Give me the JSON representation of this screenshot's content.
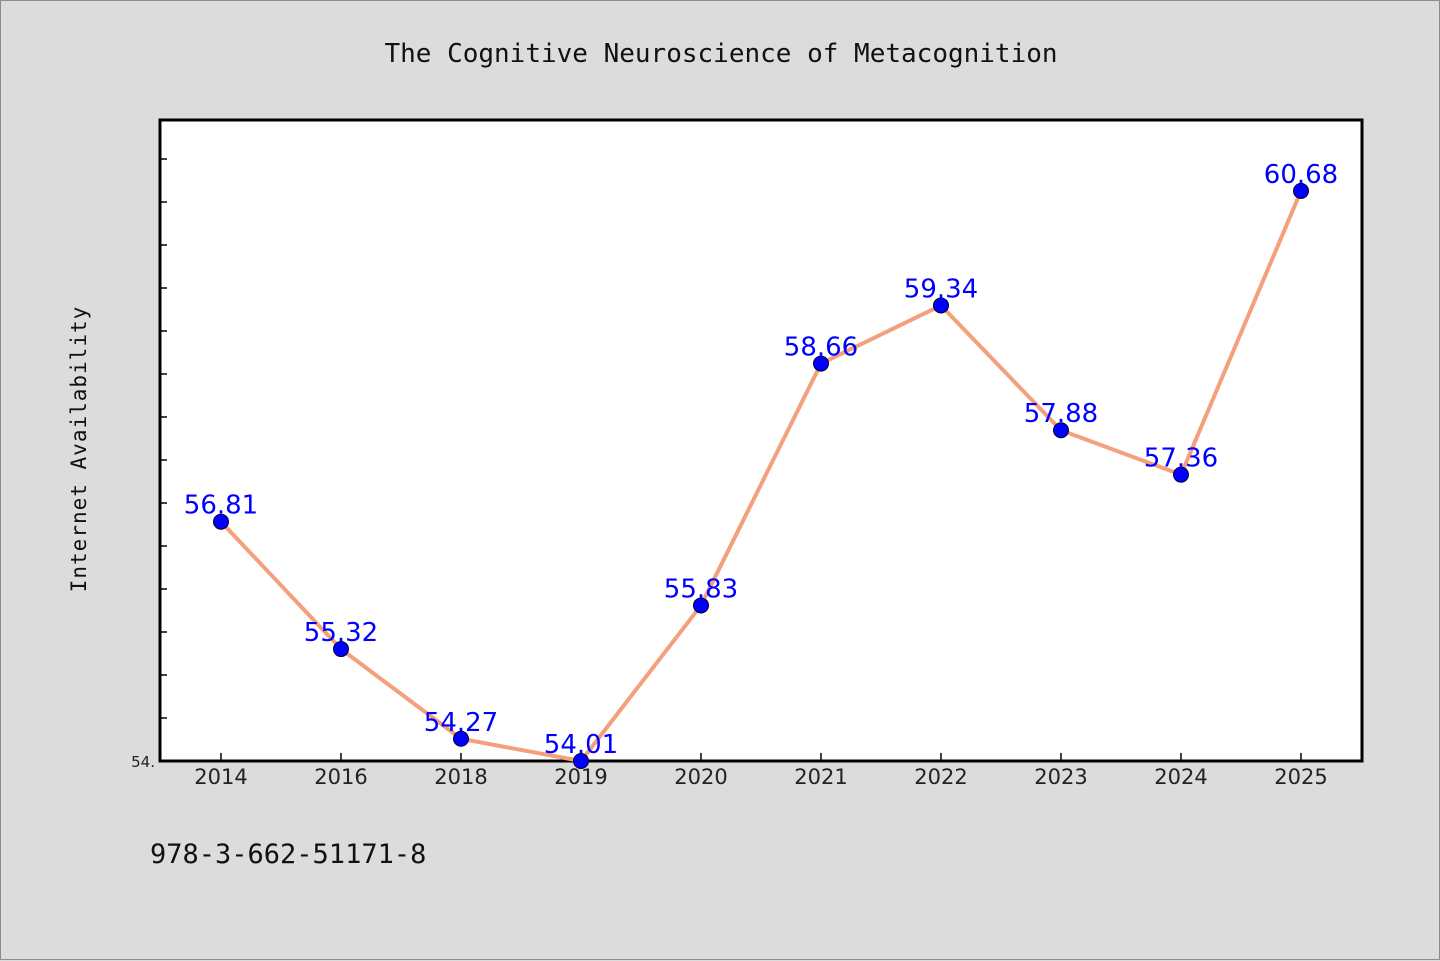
{
  "chart_data": {
    "type": "line",
    "title": "The Cognitive Neuroscience of Metacognition",
    "xlabel": "",
    "ylabel": "Internet Availability",
    "categories": [
      "2014",
      "2016",
      "2018",
      "2019",
      "2020",
      "2021",
      "2022",
      "2023",
      "2024",
      "2025"
    ],
    "values": [
      56.81,
      55.32,
      54.27,
      54.01,
      55.83,
      58.66,
      59.34,
      57.88,
      57.36,
      60.68
    ],
    "data_labels": [
      "56.81",
      "55.32",
      "54.27",
      "54.01",
      "55.83",
      "58.66",
      "59.34",
      "57.88",
      "57.36",
      "60.68"
    ],
    "y_tick_labels": [
      "54."
    ],
    "ylim": [
      54.01,
      61.51
    ],
    "grid": false,
    "line_color": "#f4a07c",
    "marker_color": "#0000ff",
    "label_color": "#0000ff",
    "background_color": "#dcdcdc",
    "plot_background_color": "#ffffff"
  },
  "footer": {
    "isbn": "978-3-662-51171-8"
  }
}
